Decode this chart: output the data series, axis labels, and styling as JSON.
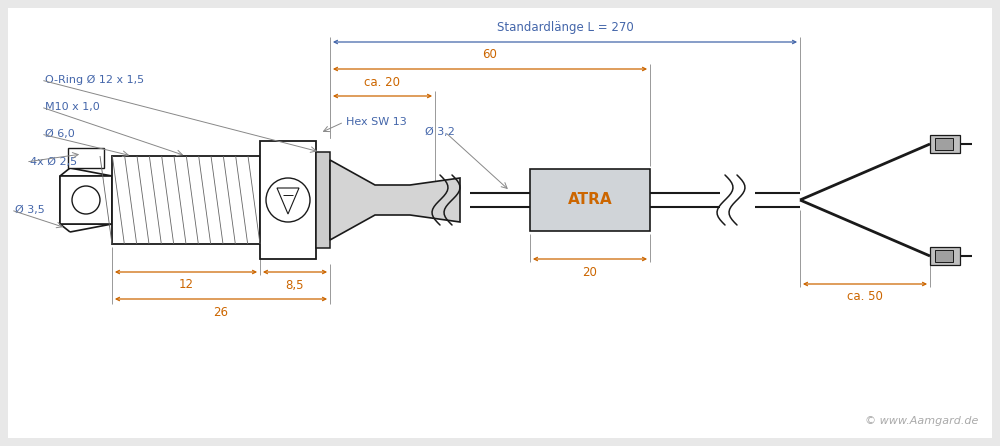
{
  "bg_color": "#e8e8e8",
  "line_color": "#1a1a1a",
  "dim_color": "#cc6600",
  "label_color": "#4466aa",
  "copyright_color": "#aaaaaa",
  "copyright": "© www.Aamgard.de",
  "atra_text": "ATRA",
  "dimensions": {
    "d1": "26",
    "d2": "12",
    "d3": "8,5",
    "d4": "ca. 20",
    "d5": "60",
    "d6": "20",
    "d7": "Standardlänge L = 270",
    "d8": "ca. 50",
    "d9": "Ø 3,5",
    "d10": "4x Ø 2,5",
    "d11": "Ø 6,0",
    "d12": "M10 x 1,0",
    "d13": "O-Ring Ø 12 x 1,5",
    "d14": "Hex SW 13",
    "d15": "Ø 3,2"
  }
}
